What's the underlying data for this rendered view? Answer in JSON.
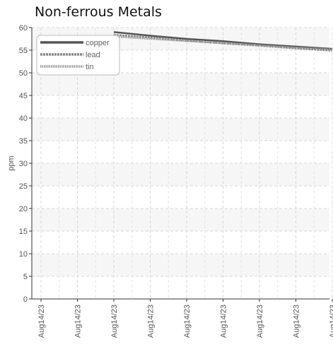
{
  "chart_data": {
    "type": "line",
    "title": "Non-ferrous Metals",
    "ylabel": "ppm",
    "xlabel": "",
    "ylim": [
      0,
      60
    ],
    "yticks": [
      0,
      5,
      10,
      15,
      20,
      25,
      30,
      35,
      40,
      45,
      50,
      55,
      60
    ],
    "x_tick_labels": [
      "Aug14/23",
      "Aug14/23",
      "Aug14/23",
      "Aug14/23",
      "Aug14/23",
      "Aug14/23",
      "Aug14/23",
      "Aug14/23",
      "Aug14/23"
    ],
    "grid": true,
    "legend_position": "top-left",
    "series": [
      {
        "name": "copper",
        "style": "solid",
        "color": "#555555",
        "values": [
          null,
          null,
          59.0,
          58.2,
          57.5,
          57.0,
          56.3,
          55.8,
          55.3
        ]
      },
      {
        "name": "lead",
        "style": "dashed",
        "color": "#888888",
        "values": [
          null,
          null,
          58.4,
          57.8,
          57.1,
          56.5,
          56.0,
          55.4,
          54.9
        ]
      },
      {
        "name": "tin",
        "style": "dotted",
        "color": "#999999",
        "values": [
          null,
          null,
          58.0,
          57.5,
          57.0,
          56.6,
          56.1,
          55.6,
          55.2
        ]
      }
    ]
  }
}
